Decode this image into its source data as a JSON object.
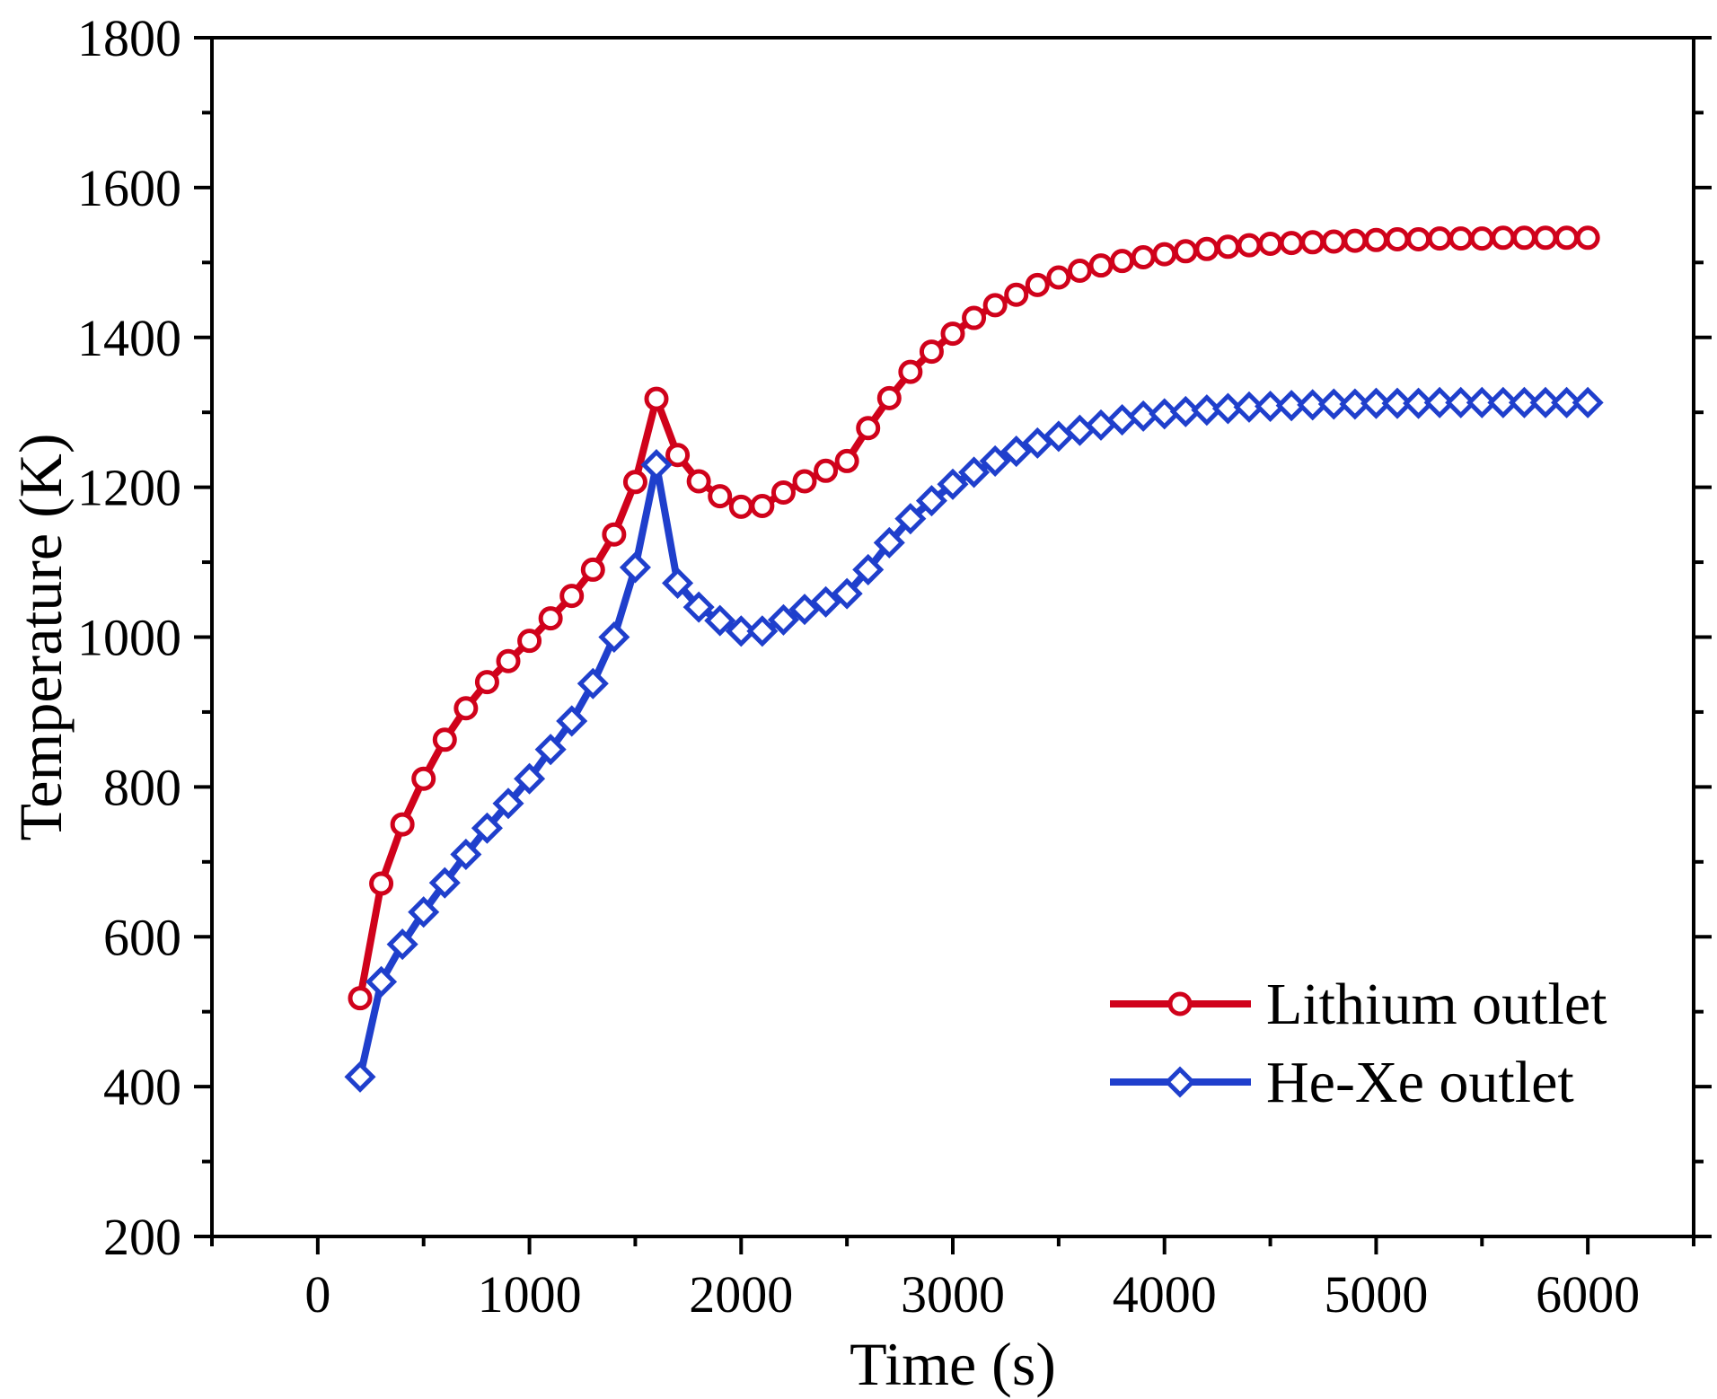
{
  "chart_data": {
    "type": "line",
    "title": "",
    "xlabel": "Time (s)",
    "ylabel": "Temperature (K)",
    "xlim": [
      -500,
      6500
    ],
    "ylim": [
      200,
      1800
    ],
    "xticks": [
      0,
      1000,
      2000,
      3000,
      4000,
      5000,
      6000
    ],
    "yticks": [
      200,
      400,
      600,
      800,
      1000,
      1200,
      1400,
      1600,
      1800
    ],
    "xtick_labels": [
      "0",
      "1000",
      "2000",
      "3000",
      "4000",
      "5000",
      "6000"
    ],
    "ytick_labels": [
      "200",
      "400",
      "600",
      "800",
      "1000",
      "1200",
      "1400",
      "1600",
      "1800"
    ],
    "legend_position": "bottom-right",
    "grid": false,
    "series": [
      {
        "name": "Lithium outlet",
        "color": "#d0021b",
        "marker": "circle",
        "x": [
          200,
          300,
          400,
          500,
          600,
          700,
          800,
          900,
          1000,
          1100,
          1200,
          1300,
          1400,
          1500,
          1600,
          1700,
          1800,
          1900,
          2000,
          2100,
          2200,
          2300,
          2400,
          2500,
          2600,
          2700,
          2800,
          2900,
          3000,
          3100,
          3200,
          3300,
          3400,
          3500,
          3600,
          3700,
          3800,
          3900,
          4000,
          4100,
          4200,
          4300,
          4400,
          4500,
          4600,
          4700,
          4800,
          4900,
          5000,
          5100,
          5200,
          5300,
          5400,
          5500,
          5600,
          5700,
          5800,
          5900,
          6000
        ],
        "y": [
          518,
          671,
          750,
          811,
          863,
          905,
          940,
          968,
          995,
          1025,
          1055,
          1090,
          1137,
          1207,
          1318,
          1243,
          1208,
          1188,
          1174,
          1175,
          1193,
          1208,
          1222,
          1235,
          1279,
          1319,
          1354,
          1381,
          1405,
          1426,
          1443,
          1457,
          1470,
          1480,
          1489,
          1496,
          1502,
          1507,
          1511,
          1515,
          1518,
          1521,
          1523,
          1525,
          1526,
          1527,
          1528,
          1529,
          1530,
          1531,
          1531,
          1532,
          1532,
          1532,
          1533,
          1533,
          1533,
          1533,
          1533
        ]
      },
      {
        "name": "He-Xe outlet",
        "color": "#1f3fcc",
        "marker": "diamond",
        "x": [
          200,
          300,
          400,
          500,
          600,
          700,
          800,
          900,
          1000,
          1100,
          1200,
          1300,
          1400,
          1500,
          1600,
          1700,
          1800,
          1900,
          2000,
          2100,
          2200,
          2300,
          2400,
          2500,
          2600,
          2700,
          2800,
          2900,
          3000,
          3100,
          3200,
          3300,
          3400,
          3500,
          3600,
          3700,
          3800,
          3900,
          4000,
          4100,
          4200,
          4300,
          4400,
          4500,
          4600,
          4700,
          4800,
          4900,
          5000,
          5100,
          5200,
          5300,
          5400,
          5500,
          5600,
          5700,
          5800,
          5900,
          6000
        ],
        "y": [
          413,
          540,
          590,
          633,
          672,
          710,
          745,
          778,
          811,
          850,
          888,
          938,
          1000,
          1093,
          1230,
          1072,
          1040,
          1022,
          1008,
          1008,
          1023,
          1037,
          1047,
          1058,
          1090,
          1126,
          1158,
          1182,
          1204,
          1220,
          1235,
          1248,
          1259,
          1268,
          1276,
          1283,
          1290,
          1295,
          1298,
          1301,
          1303,
          1305,
          1307,
          1308,
          1309,
          1310,
          1311,
          1311,
          1312,
          1312,
          1312,
          1313,
          1313,
          1313,
          1313,
          1313,
          1313,
          1313,
          1313
        ]
      }
    ]
  }
}
